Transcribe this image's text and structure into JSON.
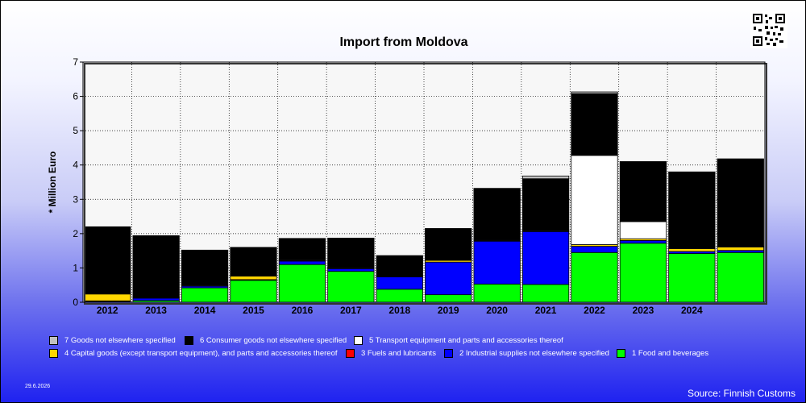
{
  "chart_data": {
    "type": "bar",
    "stacked": true,
    "title": "Import from Moldova",
    "ylabel": "* Million Euro",
    "xlabel": "",
    "ylim": [
      0,
      7
    ],
    "yticks": [
      "0",
      "1",
      "2",
      "3",
      "4",
      "5",
      "6",
      "7"
    ],
    "grid": true,
    "legend_position": "bottom",
    "categories": [
      "2012",
      "2013",
      "2014",
      "2015",
      "2016",
      "2017",
      "2018",
      "2019",
      "2020",
      "2021",
      "2022",
      "2023",
      "2024",
      ""
    ],
    "series": [
      {
        "name": "1 Food and beverages",
        "color": "#00ff00",
        "values": [
          0.02,
          0.05,
          0.42,
          0.64,
          1.1,
          0.9,
          0.38,
          0.22,
          0.53,
          0.52,
          1.45,
          1.72,
          1.42,
          1.45
        ]
      },
      {
        "name": "2 Industrial supplies not elsewhere specified",
        "color": "#0000ff",
        "values": [
          0.02,
          0.07,
          0.05,
          0.02,
          0.1,
          0.08,
          0.36,
          0.95,
          1.25,
          1.54,
          0.18,
          0.08,
          0.06,
          0.06
        ]
      },
      {
        "name": "3 Fuels and lubricants",
        "color": "#ff0000",
        "values": [
          0,
          0,
          0,
          0,
          0,
          0,
          0,
          0,
          0,
          0,
          0,
          0,
          0,
          0
        ]
      },
      {
        "name": "4 Capital goods (except transport equipment), and parts and accessories thereof",
        "color": "#ffd700",
        "values": [
          0.2,
          0.02,
          0.02,
          0.1,
          0.02,
          0.02,
          0.01,
          0.05,
          0.02,
          0.02,
          0.05,
          0.05,
          0.08,
          0.1
        ]
      },
      {
        "name": "5  Transport equipment and parts and accessories thereof",
        "color": "#ffffff",
        "values": [
          0,
          0,
          0,
          0.02,
          0.02,
          0.02,
          0.01,
          0.01,
          0.02,
          0.02,
          2.6,
          0.5,
          0.02,
          0.02
        ]
      },
      {
        "name": "6 Consumer goods not elsewhere specified",
        "color": "#000000",
        "values": [
          1.96,
          1.8,
          1.03,
          0.82,
          0.62,
          0.85,
          0.6,
          0.92,
          1.5,
          1.5,
          1.8,
          1.75,
          2.2,
          2.55
        ]
      },
      {
        "name": "7 Goods not elsewhere specified",
        "color": "#c0c0c0",
        "values": [
          0,
          0,
          0,
          0,
          0,
          0,
          0,
          0,
          0,
          0.08,
          0.05,
          0,
          0.02,
          0
        ]
      }
    ],
    "legend_order": [
      6,
      5,
      4,
      3,
      2,
      1,
      0
    ]
  },
  "footer": {
    "date": "29.6.2026",
    "source": "Source: Finnish Customs"
  },
  "icons": {
    "qr": "qr-code-icon"
  }
}
